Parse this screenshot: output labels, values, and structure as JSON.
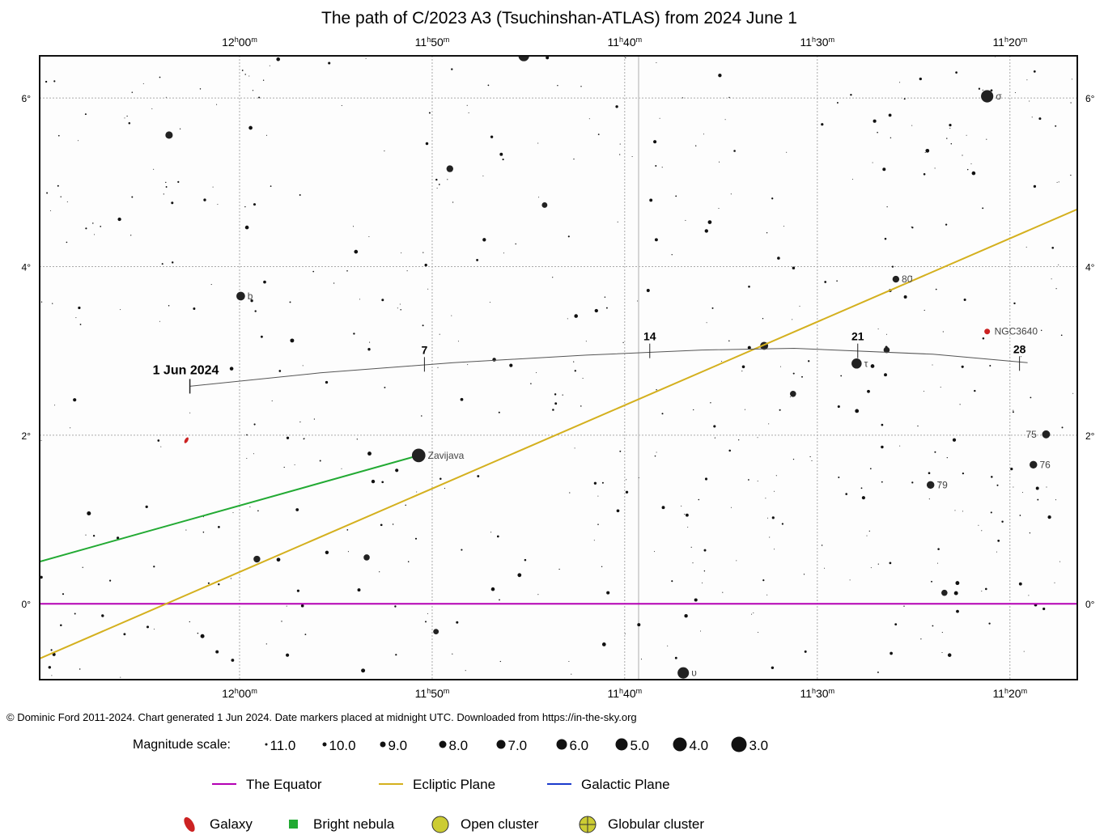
{
  "title": "The path of C/2023 A3 (Tsuchinshan-ATLAS) from 2024 June 1",
  "credit": "© Dominic Ford 2011-2024. Chart generated 1 Jun 2024. Date markers placed at midnight UTC. Downloaded from https://in-the-sky.org",
  "chart_data": {
    "type": "scatter",
    "title": "The path of C/2023 A3 (Tsuchinshan-ATLAS) from 2024 June 1",
    "xlabel": "",
    "ylabel": "",
    "x_axis": {
      "quantity": "right ascension (hours)",
      "reversed": true,
      "range": [
        12.173,
        11.275
      ],
      "ticks": [
        {
          "value": 12.0,
          "h": "12",
          "m": "00"
        },
        {
          "value": 11.8333,
          "h": "11",
          "m": "50"
        },
        {
          "value": 11.6667,
          "h": "11",
          "m": "40"
        },
        {
          "value": 11.5,
          "h": "11",
          "m": "30"
        },
        {
          "value": 11.3333,
          "h": "11",
          "m": "20"
        }
      ]
    },
    "y_axis": {
      "quantity": "declination (degrees)",
      "range": [
        -0.9,
        6.5
      ],
      "ticks": [
        {
          "value": 6,
          "label": "6°"
        },
        {
          "value": 4,
          "label": "4°"
        },
        {
          "value": 2,
          "label": "2°"
        },
        {
          "value": 0,
          "label": "0°"
        }
      ]
    },
    "grid": true,
    "comet_path": {
      "points": [
        {
          "ra": 12.043,
          "dec": 2.58
        },
        {
          "ra": 11.93,
          "dec": 2.74
        },
        {
          "ra": 11.815,
          "dec": 2.86
        },
        {
          "ra": 11.7,
          "dec": 2.95
        },
        {
          "ra": 11.6,
          "dec": 3.01
        },
        {
          "ra": 11.52,
          "dec": 3.03
        },
        {
          "ra": 11.4,
          "dec": 2.96
        },
        {
          "ra": 11.318,
          "dec": 2.86
        }
      ],
      "markers": [
        {
          "label": "1 Jun 2024",
          "ra": 12.043,
          "dec": 2.58,
          "start": true
        },
        {
          "label": "7",
          "ra": 11.84,
          "dec": 2.84
        },
        {
          "label": "14",
          "ra": 11.645,
          "dec": 3.0
        },
        {
          "label": "21",
          "ra": 11.465,
          "dec": 3.0
        },
        {
          "label": "28",
          "ra": 11.325,
          "dec": 2.85
        }
      ]
    },
    "lines": [
      {
        "name": "The Equator",
        "color": "#b400b4",
        "points": [
          {
            "ra": 12.173,
            "dec": 0.0
          },
          {
            "ra": 11.275,
            "dec": 0.0
          }
        ]
      },
      {
        "name": "Ecliptic Plane",
        "color": "#d4b01e",
        "points": [
          {
            "ra": 12.173,
            "dec": -0.65
          },
          {
            "ra": 11.275,
            "dec": 4.68
          }
        ]
      },
      {
        "name": "Galactic Plane",
        "color": "#1a3acc",
        "points": [
          {
            "ra": 12.173,
            "dec": 0.5
          },
          {
            "ra": 11.845,
            "dec": 1.76
          }
        ]
      }
    ],
    "labelled_objects": [
      {
        "label": "σ",
        "ra": 11.353,
        "dec": 6.02,
        "mag": 4.0
      },
      {
        "label": "b",
        "ra": 11.999,
        "dec": 3.65,
        "mag": 5.2
      },
      {
        "label": "80",
        "ra": 11.432,
        "dec": 3.85,
        "mag": 5.8
      },
      {
        "label": "τ",
        "ra": 11.466,
        "dec": 2.85,
        "mag": 4.7
      },
      {
        "label": "Zavijava",
        "ra": 11.845,
        "dec": 1.76,
        "mag": 3.6
      },
      {
        "label": "75",
        "ra": 11.302,
        "dec": 2.01,
        "mag": 5.4
      },
      {
        "label": "76",
        "ra": 11.313,
        "dec": 1.65,
        "mag": 5.5
      },
      {
        "label": "79",
        "ra": 11.402,
        "dec": 1.41,
        "mag": 5.5
      },
      {
        "label": "υ",
        "ra": 11.616,
        "dec": -0.82,
        "mag": 4.3
      }
    ],
    "deep_sky": [
      {
        "label": "NGC3640",
        "type": "galaxy",
        "ra": 11.353,
        "dec": 3.23
      },
      {
        "label": "",
        "type": "galaxy",
        "ra": 12.046,
        "dec": 1.94
      }
    ],
    "bright_stars": [
      {
        "ra": 11.754,
        "dec": 6.5,
        "mag": 4.5
      },
      {
        "ra": 12.061,
        "dec": 5.56,
        "mag": 5.6
      },
      {
        "ra": 11.818,
        "dec": 5.16,
        "mag": 5.8
      },
      {
        "ra": 11.736,
        "dec": 4.73,
        "mag": 6.2
      },
      {
        "ra": 11.546,
        "dec": 3.06,
        "mag": 5.4
      },
      {
        "ra": 11.44,
        "dec": 3.01,
        "mag": 6.0
      },
      {
        "ra": 11.521,
        "dec": 2.49,
        "mag": 6.0
      },
      {
        "ra": 11.985,
        "dec": 0.53,
        "mag": 5.8
      },
      {
        "ra": 11.89,
        "dec": 0.55,
        "mag": 6.0
      },
      {
        "ra": 11.39,
        "dec": 0.13,
        "mag": 6.0
      },
      {
        "ra": 11.83,
        "dec": -0.33,
        "mag": 6.2
      }
    ],
    "legend": {
      "magnitude_title": "Magnitude scale:",
      "magnitudes": [
        "11.0",
        "10.0",
        "9.0",
        "8.0",
        "7.0",
        "6.0",
        "5.0",
        "4.0",
        "3.0"
      ],
      "lines": [
        {
          "label": "The Equator",
          "color": "#b400b4"
        },
        {
          "label": "Ecliptic Plane",
          "color": "#d4b01e"
        },
        {
          "label": "Galactic Plane",
          "color": "#1a3acc"
        }
      ],
      "objects": [
        {
          "label": "Galaxy",
          "color": "#cc2222"
        },
        {
          "label": "Bright nebula",
          "color": "#22aa33"
        },
        {
          "label": "Open cluster",
          "color": "#cccc33"
        },
        {
          "label": "Globular cluster",
          "color": "#cccc33"
        }
      ]
    }
  }
}
